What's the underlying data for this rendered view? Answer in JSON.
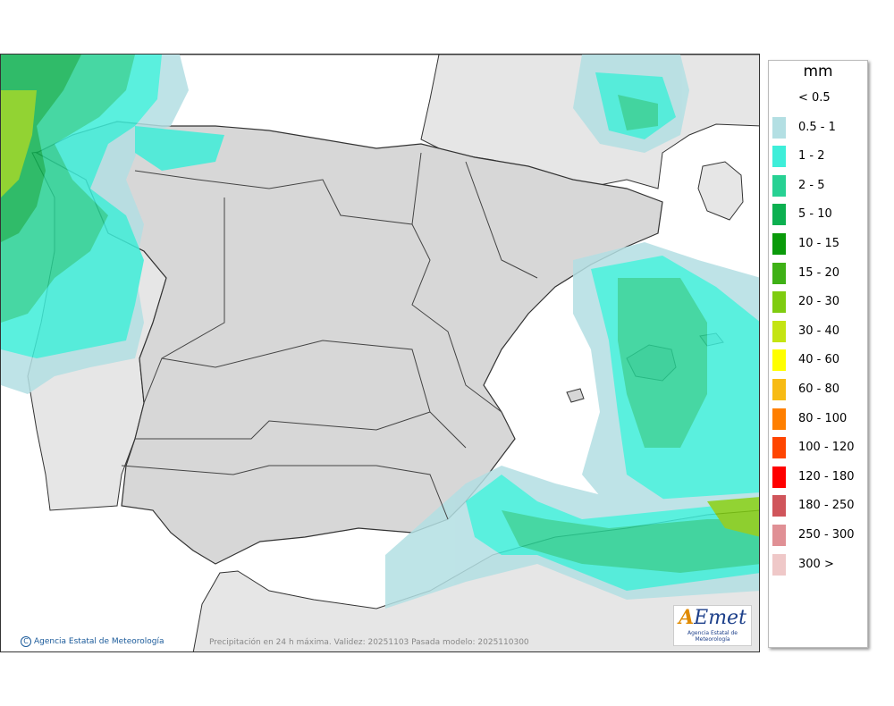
{
  "legend": {
    "unit": "mm",
    "items": [
      {
        "label": "< 0.5",
        "color": "#ffffff"
      },
      {
        "label": "0.5 - 1",
        "color": "#b3dfe3"
      },
      {
        "label": "1 - 2",
        "color": "#3eeed9"
      },
      {
        "label": "2 - 5",
        "color": "#27d193"
      },
      {
        "label": "5 - 10",
        "color": "#0cb050"
      },
      {
        "label": "10 - 15",
        "color": "#0a9a0a"
      },
      {
        "label": "15 - 20",
        "color": "#3fb116"
      },
      {
        "label": "20 - 30",
        "color": "#7fcc10"
      },
      {
        "label": "30 - 40",
        "color": "#c4e412"
      },
      {
        "label": "40 - 60",
        "color": "#ffff00"
      },
      {
        "label": "60 - 80",
        "color": "#f7bb14"
      },
      {
        "label": "80 - 100",
        "color": "#ff7f00"
      },
      {
        "label": "100 - 120",
        "color": "#ff4500"
      },
      {
        "label": "120 - 180",
        "color": "#ff0000"
      },
      {
        "label": "180 - 250",
        "color": "#d0555b"
      },
      {
        "label": "250 - 300",
        "color": "#e09095"
      },
      {
        "label": "300 >",
        "color": "#efc8c8"
      }
    ]
  },
  "map": {
    "credit": "Agencia Estatal de Meteorología",
    "caption": "Precipitación en 24 h máxima. Validez: 20251103 Pasada modelo: 2025110300",
    "logo_text": "AEmet",
    "logo_sub": "Agencia Estatal de Meteorología",
    "colors": {
      "sea": "#ffffff",
      "land_outside": "#e6e6e6",
      "spain_land": "#d7d7d7",
      "border": "#333333"
    }
  }
}
